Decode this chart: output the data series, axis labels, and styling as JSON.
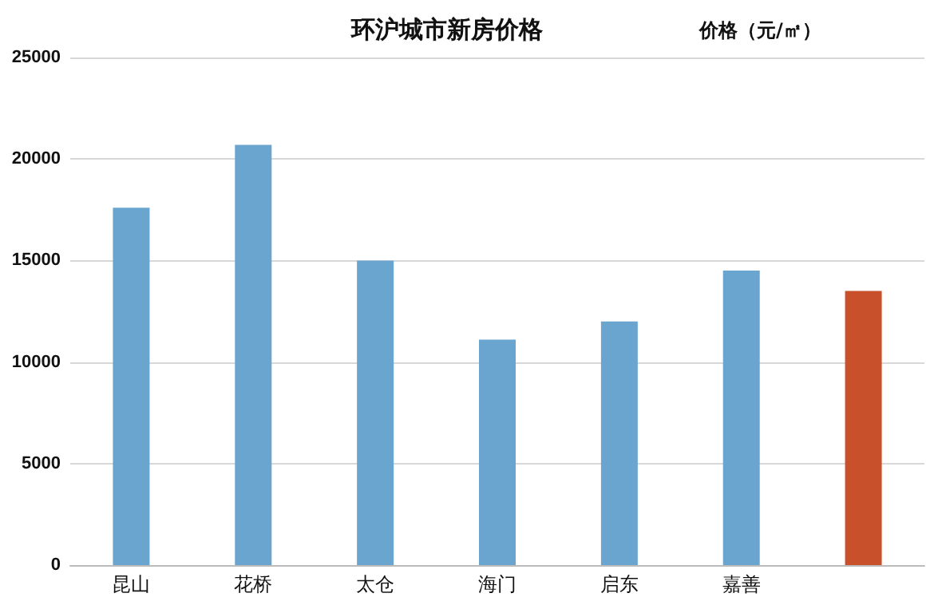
{
  "chart_data": {
    "type": "bar",
    "title": "环沪城市新房价格",
    "ylabel": "价格（元/㎡）",
    "categories": [
      "昆山",
      "花桥",
      "太仓",
      "海门",
      "启东",
      "嘉善",
      null
    ],
    "values": [
      17600,
      20700,
      15000,
      11100,
      12000,
      14500,
      13500
    ],
    "colors": [
      "#6aa5d0",
      "#6aa5d0",
      "#6aa5d0",
      "#6aa5d0",
      "#6aa5d0",
      "#6aa5d0",
      "#c8502a"
    ],
    "ylim": [
      0,
      25000
    ],
    "yticks": [
      0,
      5000,
      10000,
      15000,
      20000,
      25000
    ],
    "grid": "y"
  }
}
